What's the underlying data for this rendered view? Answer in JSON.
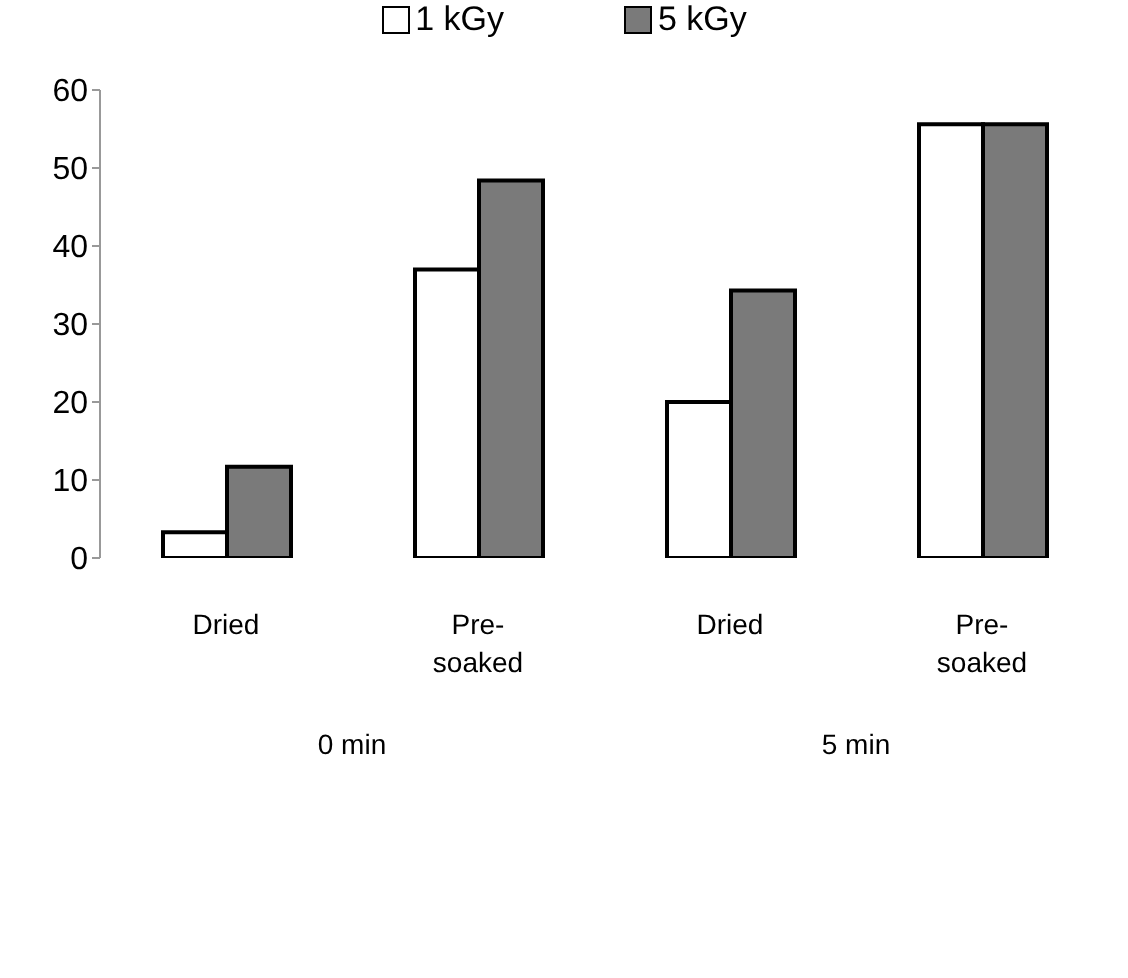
{
  "chart_data": {
    "type": "bar",
    "categories": [
      "Dried",
      "Pre-soaked",
      "Dried",
      "Pre-soaked"
    ],
    "series": [
      {
        "name": "1 kGy",
        "color": "#ffffff",
        "values": [
          3.3,
          37,
          20,
          55.6
        ]
      },
      {
        "name": "5 kGy",
        "color": "#7a7a7a",
        "values": [
          11.7,
          48.4,
          34.3,
          55.6
        ]
      }
    ],
    "annotations": [
      "0 min",
      "5 min"
    ],
    "ylim": [
      0,
      60
    ],
    "yticks": [
      0,
      10,
      20,
      30,
      40,
      50,
      60
    ],
    "grid": false,
    "legend": "top"
  }
}
